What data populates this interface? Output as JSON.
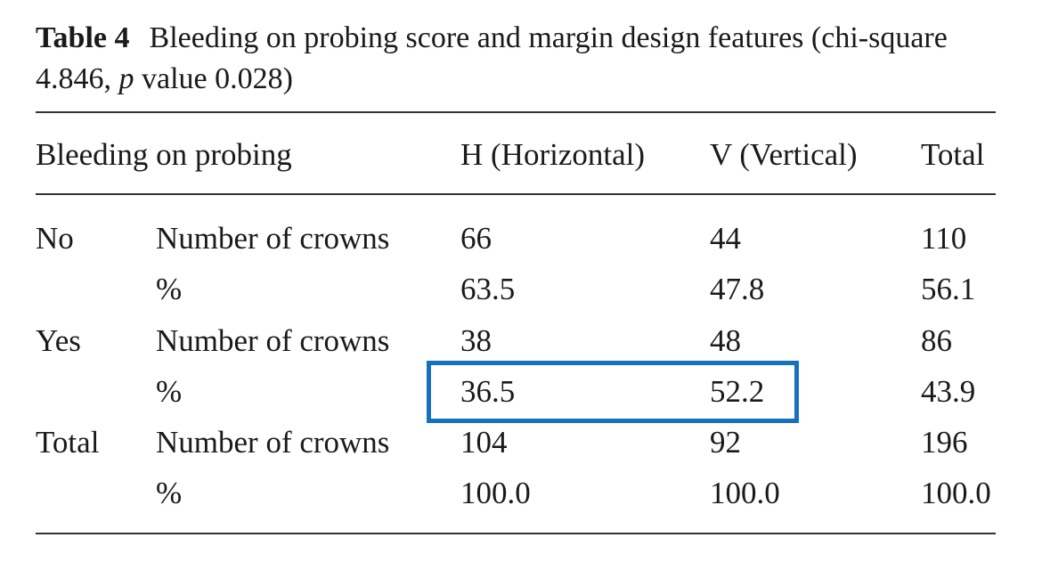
{
  "caption": {
    "label": "Table 4",
    "text_before_p": "Bleeding on probing score and margin design features (chi-square 4.846, ",
    "p_symbol": "p",
    "text_after_p": " value 0.028)"
  },
  "table": {
    "headers": {
      "row_label": "Bleeding on probing",
      "horizontal": "H (Horizontal)",
      "vertical": "V (Vertical)",
      "total": "Total"
    },
    "rows": [
      {
        "group": "No",
        "measure": "Number of crowns",
        "h": "66",
        "v": "44",
        "total": "110"
      },
      {
        "group": "",
        "measure": "%",
        "h": "63.5",
        "v": "47.8",
        "total": "56.1"
      },
      {
        "group": "Yes",
        "measure": "Number of crowns",
        "h": "38",
        "v": "48",
        "total": "86"
      },
      {
        "group": "",
        "measure": "%",
        "h": "36.5",
        "v": "52.2",
        "total": "43.9"
      },
      {
        "group": "Total",
        "measure": "Number of crowns",
        "h": "104",
        "v": "92",
        "total": "196"
      },
      {
        "group": "",
        "measure": "%",
        "h": "100.0",
        "v": "100.0",
        "total": "100.0"
      }
    ]
  },
  "highlight": {
    "row": 3,
    "columns": [
      "h",
      "v"
    ],
    "color": "#1570be"
  }
}
